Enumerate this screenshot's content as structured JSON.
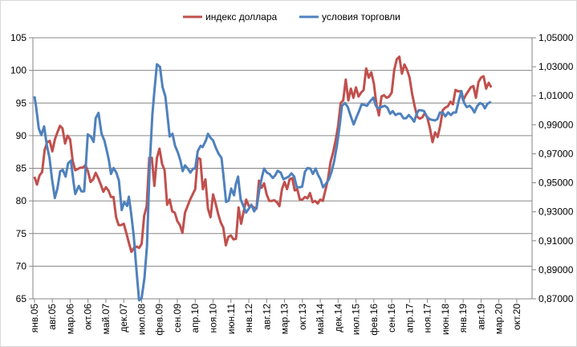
{
  "chart_data": {
    "type": "line",
    "title": "",
    "legend_position": "top",
    "grid": true,
    "x_unit": "month index from янв.05",
    "x_tick_step_months": 7,
    "x_tick_labels": [
      "янв.05",
      "авг.05",
      "мар.06",
      "окт.06",
      "май.07",
      "дек.07",
      "июл.08",
      "фев.09",
      "сен.09",
      "апр.10",
      "ноя.10",
      "июн.11",
      "янв.12",
      "авг.12",
      "мар.13",
      "окт.13",
      "май.14",
      "дек.14",
      "июл.15",
      "фев.16",
      "сен.16",
      "апр.17",
      "ноя.17",
      "июн.18",
      "янв.19",
      "авг.19",
      "мар.20",
      "окт.20"
    ],
    "xlim": [
      -0.6,
      195
    ],
    "y_left": {
      "ylim": [
        65,
        105
      ],
      "ticks": [
        "65",
        "70",
        "75",
        "80",
        "85",
        "90",
        "95",
        "100",
        "105"
      ],
      "tick_values": [
        65,
        70,
        75,
        80,
        85,
        90,
        95,
        100,
        105
      ]
    },
    "y_right": {
      "ylim": [
        0.87,
        1.05
      ],
      "ticks": [
        "0,87000",
        "0,89000",
        "0,91000",
        "0,93000",
        "0,95000",
        "0,97000",
        "0,99000",
        "1,01000",
        "1,03000",
        "1,05000"
      ],
      "tick_values": [
        0.87,
        0.89,
        0.91,
        0.93,
        0.95,
        0.97,
        0.99,
        1.01,
        1.03,
        1.05
      ]
    },
    "series": [
      {
        "name": "индекс доллара",
        "axis": "left",
        "color": "#c0504d",
        "values": [
          83.7,
          82.5,
          83.9,
          84.4,
          87.8,
          89,
          89.2,
          87.6,
          89.4,
          90.5,
          91.5,
          91.1,
          88.8,
          90,
          89.4,
          86.1,
          84.7,
          84.9,
          85.1,
          85.1,
          85.5,
          84.5,
          82.9,
          83.3,
          84.3,
          83.5,
          82.5,
          81.4,
          82.1,
          81.6,
          80.6,
          80.6,
          77.5,
          76.3,
          76.3,
          76.5,
          75.1,
          73.6,
          72.2,
          72.8,
          73,
          72.8,
          73.4,
          77.7,
          79.2,
          86.6,
          86.6,
          82.3,
          86.6,
          88,
          85.7,
          84.7,
          79.4,
          80.2,
          78.4,
          78.2,
          76.9,
          76.3,
          75.1,
          78.2,
          79.2,
          80.2,
          81,
          81.8,
          86.6,
          86.4,
          81.8,
          83.3,
          78.8,
          77.5,
          81,
          79.6,
          78,
          76.7,
          75.9,
          73.2,
          74.5,
          74.7,
          74.1,
          74.2,
          79,
          76.5,
          78.4,
          80.2,
          79.2,
          79.2,
          79,
          78.8,
          83.1,
          82,
          82.7,
          81,
          80,
          80,
          80.1,
          79.8,
          79.2,
          81.8,
          82.9,
          81.8,
          83.3,
          83.5,
          81.6,
          81.8,
          80.2,
          80.2,
          80.6,
          80.4,
          81.2,
          79.8,
          80,
          79.6,
          80.2,
          80,
          81.6,
          83.3,
          85.9,
          87.4,
          89.2,
          91.5,
          95,
          95.4,
          98.6,
          95.4,
          97.2,
          95.8,
          97.4,
          96,
          96.6,
          97,
          100.3,
          98.9,
          99.7,
          98,
          94.8,
          93.1,
          96,
          96.2,
          95.8,
          96,
          96.6,
          100.1,
          101.7,
          102.1,
          99.5,
          100.9,
          100.1,
          98.9,
          96.4,
          94.5,
          92.9,
          92.6,
          92.8,
          93.5,
          92.7,
          91.1,
          89,
          90.5,
          89.8,
          91.5,
          93.9,
          94.3,
          94.5,
          95.2,
          94.8,
          97,
          96.8,
          96.8,
          95.4,
          96.2,
          96.8,
          97.4,
          97.6,
          95.8,
          98.2,
          98.9,
          99.1,
          97.2,
          98.1,
          97.4
        ]
      },
      {
        "name": "условия торговли",
        "axis": "right",
        "color": "#4f81bd",
        "points": [
          [
            0,
            1.0096
          ],
          [
            0.6,
            1.0031
          ],
          [
            1.7,
            0.9875
          ],
          [
            2.7,
            0.9829
          ],
          [
            3.8,
            0.9889
          ],
          [
            4.8,
            0.9764
          ],
          [
            5.9,
            0.9672
          ],
          [
            6.9,
            0.9524
          ],
          [
            8,
            0.9395
          ],
          [
            9,
            0.946
          ],
          [
            10.1,
            0.958
          ],
          [
            11.1,
            0.9589
          ],
          [
            12.2,
            0.9543
          ],
          [
            13.2,
            0.9635
          ],
          [
            14.3,
            0.9653
          ],
          [
            15.3,
            0.9506
          ],
          [
            16,
            0.9423
          ],
          [
            17.4,
            0.9478
          ],
          [
            18.4,
            0.9441
          ],
          [
            19.5,
            0.9441
          ],
          [
            20.9,
            0.9834
          ],
          [
            22.1,
            0.9819
          ],
          [
            23.2,
            0.9782
          ],
          [
            24,
            0.9945
          ],
          [
            25.1,
            0.9982
          ],
          [
            26.3,
            0.9838
          ],
          [
            27.4,
            0.9792
          ],
          [
            28.4,
            0.9718
          ],
          [
            29.2,
            0.9653
          ],
          [
            30,
            0.9561
          ],
          [
            31,
            0.9602
          ],
          [
            32.1,
            0.957
          ],
          [
            33.1,
            0.9515
          ],
          [
            34.2,
            0.9312
          ],
          [
            35.2,
            0.9368
          ],
          [
            36.3,
            0.934
          ],
          [
            37,
            0.9404
          ],
          [
            37.8,
            0.9303
          ],
          [
            38.9,
            0.9137
          ],
          [
            39.9,
            0.8916
          ],
          [
            41,
            0.869
          ],
          [
            42,
            0.8704
          ],
          [
            43.1,
            0.8842
          ],
          [
            44.1,
            0.9063
          ],
          [
            45.2,
            0.9635
          ],
          [
            46.2,
            0.9967
          ],
          [
            47.1,
            1.0151
          ],
          [
            48,
            1.0317
          ],
          [
            49.2,
            1.0299
          ],
          [
            50.2,
            1.016
          ],
          [
            51.3,
            1.0096
          ],
          [
            52,
            0.9985
          ],
          [
            53,
            0.9819
          ],
          [
            54.1,
            0.9838
          ],
          [
            55.1,
            0.9755
          ],
          [
            56.2,
            0.9709
          ],
          [
            57.2,
            0.9653
          ],
          [
            58.1,
            0.958
          ],
          [
            59,
            0.962
          ],
          [
            60.1,
            0.9598
          ],
          [
            61.1,
            0.957
          ],
          [
            62.2,
            0.9598
          ],
          [
            63,
            0.9598
          ],
          [
            64,
            0.9718
          ],
          [
            65.1,
            0.9755
          ],
          [
            65.9,
            0.9746
          ],
          [
            67.2,
            0.9792
          ],
          [
            68,
            0.9838
          ],
          [
            69,
            0.981
          ],
          [
            70,
            0.9792
          ],
          [
            71.2,
            0.9736
          ],
          [
            72.2,
            0.9699
          ],
          [
            73.3,
            0.9672
          ],
          [
            74,
            0.9561
          ],
          [
            75.1,
            0.9368
          ],
          [
            76.1,
            0.9377
          ],
          [
            77.1,
            0.946
          ],
          [
            78.2,
            0.9414
          ],
          [
            78.9,
            0.9488
          ],
          [
            79.8,
            0.9543
          ],
          [
            80.8,
            0.9386
          ],
          [
            81.9,
            0.934
          ],
          [
            82.9,
            0.9294
          ],
          [
            84,
            0.9321
          ],
          [
            85,
            0.9349
          ],
          [
            86.1,
            0.9303
          ],
          [
            87.1,
            0.9331
          ],
          [
            88.2,
            0.946
          ],
          [
            89.2,
            0.9543
          ],
          [
            90,
            0.9598
          ],
          [
            91.1,
            0.957
          ],
          [
            92.1,
            0.9561
          ],
          [
            93.4,
            0.9533
          ],
          [
            94.4,
            0.9552
          ],
          [
            95.3,
            0.9583
          ],
          [
            96.5,
            0.957
          ],
          [
            97.6,
            0.9524
          ],
          [
            98.6,
            0.9533
          ],
          [
            99.7,
            0.9543
          ],
          [
            100.7,
            0.9565
          ],
          [
            101.8,
            0.9543
          ],
          [
            102.8,
            0.9469
          ],
          [
            103.9,
            0.9469
          ],
          [
            104.9,
            0.9473
          ],
          [
            106,
            0.9576
          ],
          [
            107,
            0.9602
          ],
          [
            108.1,
            0.9598
          ],
          [
            109.1,
            0.9561
          ],
          [
            110.2,
            0.9598
          ],
          [
            111.2,
            0.9552
          ],
          [
            112.1,
            0.9524
          ],
          [
            113.1,
            0.9469
          ],
          [
            114.4,
            0.9497
          ],
          [
            115.4,
            0.9524
          ],
          [
            116.5,
            0.958
          ],
          [
            117.5,
            0.9653
          ],
          [
            118.6,
            0.9764
          ],
          [
            119.6,
            0.9893
          ],
          [
            120.5,
            1.0031
          ],
          [
            121.7,
            1.005
          ],
          [
            122.8,
            1.0022
          ],
          [
            123.8,
            0.9967
          ],
          [
            125.1,
            0.9902
          ],
          [
            126.1,
            0.9948
          ],
          [
            127.2,
            0.9994
          ],
          [
            128.2,
            1.0041
          ],
          [
            129.3,
            1.0037
          ],
          [
            130.3,
            1.0031
          ],
          [
            131.4,
            1.0059
          ],
          [
            132.8,
            1.0087
          ],
          [
            133.8,
            1.0031
          ],
          [
            134.8,
            1.0013
          ],
          [
            135.9,
            1.0022
          ],
          [
            137.3,
            1.0031
          ],
          [
            138.3,
            1.0018
          ],
          [
            139.4,
            0.9976
          ],
          [
            140.4,
            0.9994
          ],
          [
            141.5,
            0.9967
          ],
          [
            142.5,
            0.9976
          ],
          [
            143.5,
            0.9976
          ],
          [
            144.6,
            0.9945
          ],
          [
            145.6,
            0.9945
          ],
          [
            146.7,
            0.9967
          ],
          [
            147.7,
            0.9948
          ],
          [
            148.8,
            0.9921
          ],
          [
            149.8,
            0.9976
          ],
          [
            150.6,
            1.0
          ],
          [
            151.6,
            1.0
          ],
          [
            152.7,
            0.9994
          ],
          [
            153.7,
            0.9958
          ],
          [
            154.8,
            0.9939
          ],
          [
            155.8,
            0.9934
          ],
          [
            156.9,
            0.993
          ],
          [
            157.9,
            0.9939
          ],
          [
            158.9,
            0.9985
          ],
          [
            160,
            0.9985
          ],
          [
            161,
            0.9958
          ],
          [
            162.1,
            0.9985
          ],
          [
            163.2,
            0.9967
          ],
          [
            164.2,
            0.9985
          ],
          [
            165.2,
            0.9985
          ],
          [
            166.3,
            1.0068
          ],
          [
            167.3,
            1.0133
          ],
          [
            168.4,
            1.005
          ],
          [
            169.4,
            1.0022
          ],
          [
            170.5,
            1.0031
          ],
          [
            171.5,
            1.0013
          ],
          [
            172.4,
            0.9985
          ],
          [
            173.6,
            1.0031
          ],
          [
            174.6,
            1.005
          ],
          [
            175.7,
            1.004
          ],
          [
            176.5,
            1.0013
          ],
          [
            177.5,
            1.0044
          ],
          [
            178.9,
            1.0059
          ]
        ]
      }
    ]
  }
}
